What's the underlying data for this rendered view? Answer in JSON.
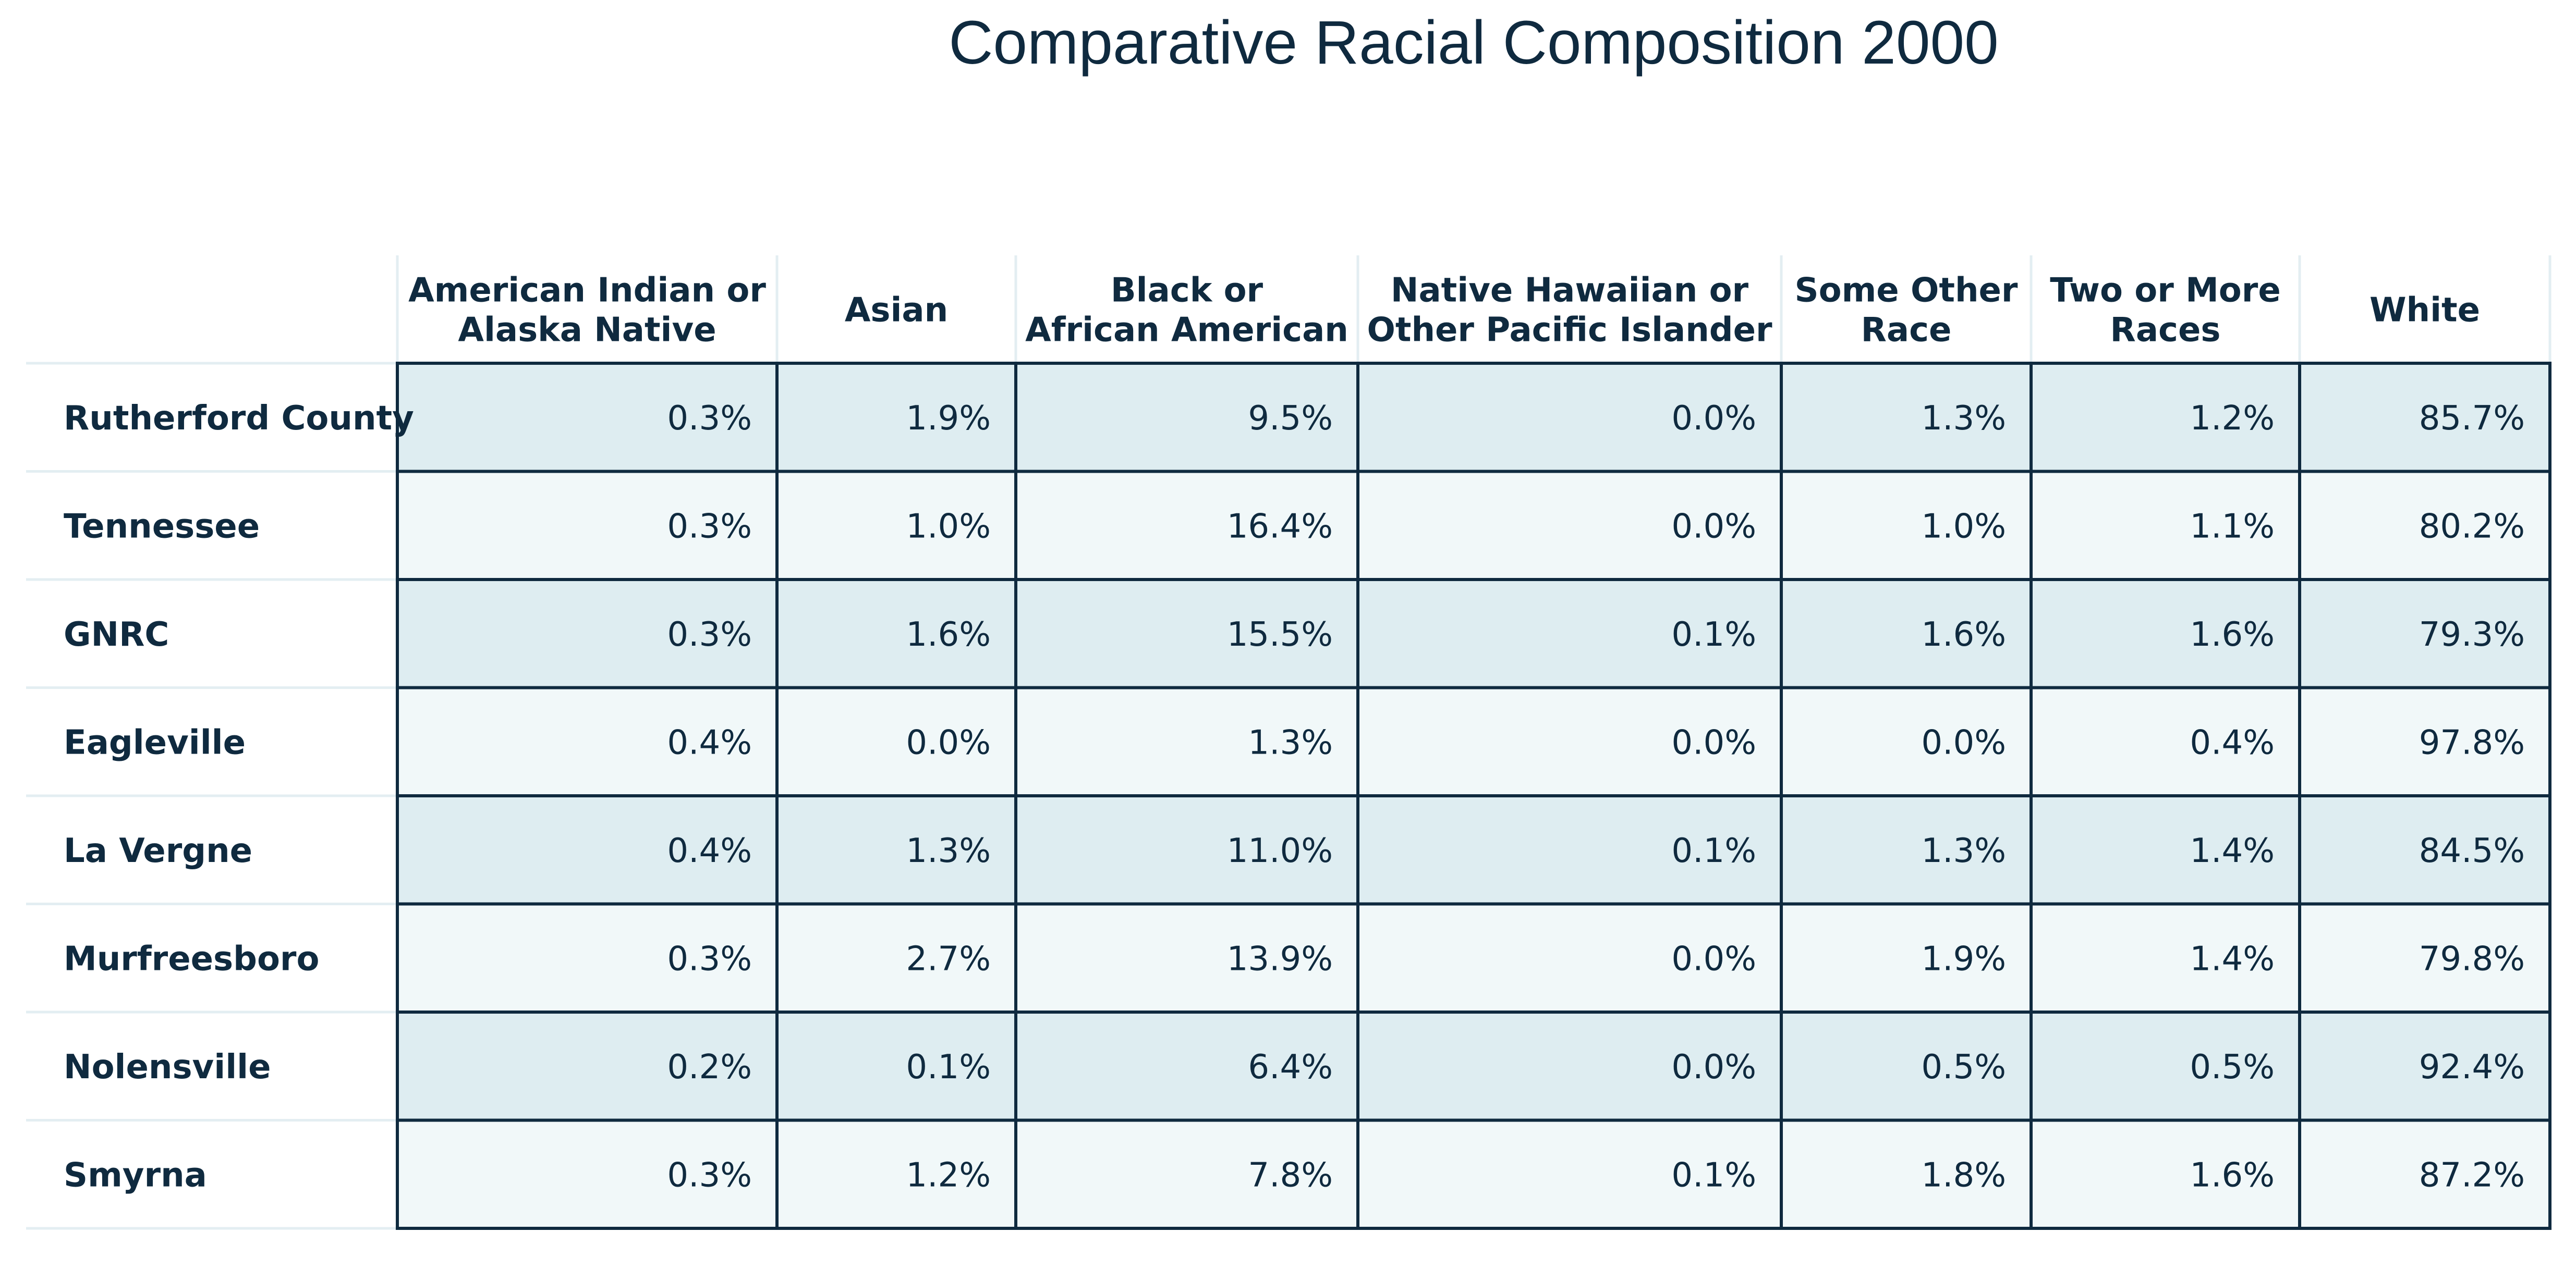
{
  "colors": {
    "text": "#0f2a3f",
    "band_dark": "#deedf1",
    "band_light": "#f1f8f9",
    "cell_border": "#0f2a3f",
    "header_separator": "#e3eef2",
    "background": "#ffffff"
  },
  "chart_data": {
    "type": "table",
    "title": "Comparative Racial Composition 2000",
    "columns": [
      {
        "lines": [
          "American Indian or",
          "Alaska Native"
        ]
      },
      {
        "lines": [
          "Asian"
        ]
      },
      {
        "lines": [
          "Black or",
          "African American"
        ]
      },
      {
        "lines": [
          "Native Hawaiian or",
          "Other Pacific Islander"
        ]
      },
      {
        "lines": [
          "Some Other",
          "Race"
        ]
      },
      {
        "lines": [
          "Two or More",
          "Races"
        ]
      },
      {
        "lines": [
          "White"
        ]
      }
    ],
    "rows": [
      {
        "label": "Rutherford County",
        "values": [
          "0.3%",
          "1.9%",
          "9.5%",
          "0.0%",
          "1.3%",
          "1.2%",
          "85.7%"
        ]
      },
      {
        "label": "Tennessee",
        "values": [
          "0.3%",
          "1.0%",
          "16.4%",
          "0.0%",
          "1.0%",
          "1.1%",
          "80.2%"
        ]
      },
      {
        "label": "GNRC",
        "values": [
          "0.3%",
          "1.6%",
          "15.5%",
          "0.1%",
          "1.6%",
          "1.6%",
          "79.3%"
        ]
      },
      {
        "label": "Eagleville",
        "values": [
          "0.4%",
          "0.0%",
          "1.3%",
          "0.0%",
          "0.0%",
          "0.4%",
          "97.8%"
        ]
      },
      {
        "label": "La Vergne",
        "values": [
          "0.4%",
          "1.3%",
          "11.0%",
          "0.1%",
          "1.3%",
          "1.4%",
          "84.5%"
        ]
      },
      {
        "label": "Murfreesboro",
        "values": [
          "0.3%",
          "2.7%",
          "13.9%",
          "0.0%",
          "1.9%",
          "1.4%",
          "79.8%"
        ]
      },
      {
        "label": "Nolensville",
        "values": [
          "0.2%",
          "0.1%",
          "6.4%",
          "0.0%",
          "0.5%",
          "0.5%",
          "92.4%"
        ]
      },
      {
        "label": "Smyrna",
        "values": [
          "0.3%",
          "1.2%",
          "7.8%",
          "0.1%",
          "1.8%",
          "1.6%",
          "87.2%"
        ]
      }
    ]
  }
}
